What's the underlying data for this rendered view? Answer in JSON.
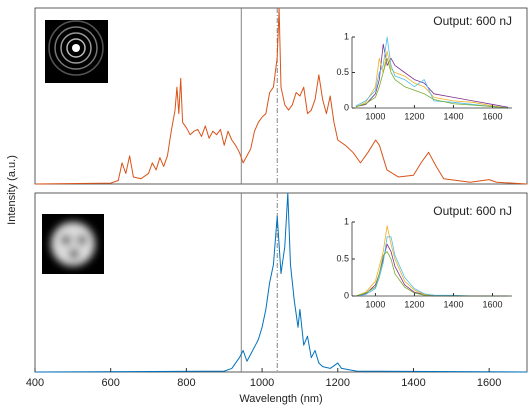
{
  "chart_data": [
    {
      "type": "line",
      "ylabel": "Intensity (a.u.)",
      "annotation": "Output: 600 nJ",
      "xlim": [
        400,
        1700
      ],
      "ylim": [
        0,
        1
      ],
      "vlines": [
        {
          "value": 945,
          "style": "solid"
        },
        {
          "value": 1040,
          "style": "dashdot"
        }
      ],
      "x": [
        400,
        600,
        620,
        630,
        640,
        650,
        660,
        680,
        700,
        710,
        720,
        730,
        740,
        750,
        760,
        770,
        775,
        780,
        785,
        790,
        800,
        810,
        820,
        830,
        840,
        850,
        860,
        870,
        880,
        890,
        900,
        910,
        920,
        930,
        940,
        950,
        960,
        970,
        980,
        990,
        1000,
        1010,
        1020,
        1030,
        1040,
        1045,
        1050,
        1060,
        1070,
        1080,
        1090,
        1100,
        1110,
        1120,
        1130,
        1140,
        1150,
        1160,
        1170,
        1180,
        1190,
        1200,
        1220,
        1240,
        1260,
        1280,
        1300,
        1310,
        1330,
        1360,
        1400,
        1420,
        1440,
        1460,
        1480,
        1550,
        1600,
        1620,
        1700
      ],
      "series": [
        {
          "color": "#d95319",
          "values": [
            0,
            0.005,
            0.02,
            0.12,
            0.06,
            0.16,
            0.04,
            0.03,
            0.06,
            0.12,
            0.08,
            0.15,
            0.1,
            0.16,
            0.3,
            0.42,
            0.55,
            0.4,
            0.6,
            0.35,
            0.32,
            0.28,
            0.3,
            0.31,
            0.27,
            0.33,
            0.26,
            0.3,
            0.28,
            0.31,
            0.22,
            0.3,
            0.25,
            0.22,
            0.18,
            0.12,
            0.16,
            0.2,
            0.3,
            0.35,
            0.38,
            0.4,
            0.52,
            0.55,
            0.72,
            1,
            0.55,
            0.45,
            0.42,
            0.45,
            0.52,
            0.5,
            0.55,
            0.4,
            0.42,
            0.48,
            0.62,
            0.48,
            0.4,
            0.5,
            0.35,
            0.25,
            0.22,
            0.18,
            0.12,
            0.18,
            0.25,
            0.22,
            0.08,
            0.04,
            0.05,
            0.12,
            0.18,
            0.1,
            0.03,
            0.01,
            0.025,
            0.01,
            0
          ]
        }
      ],
      "inset": {
        "type": "line",
        "xlim": [
          880,
          1700
        ],
        "ylim": [
          0,
          1
        ],
        "xticks": [
          1000,
          1200,
          1400,
          1600
        ],
        "yticks": [
          0,
          0.5,
          1
        ],
        "x": [
          900,
          950,
          1000,
          1020,
          1040,
          1060,
          1080,
          1100,
          1150,
          1200,
          1250,
          1300,
          1400,
          1500,
          1600,
          1680
        ],
        "series": [
          {
            "color": "#7e2f8e",
            "values": [
              0.02,
              0.05,
              0.2,
              0.4,
              0.9,
              0.6,
              0.7,
              0.6,
              0.5,
              0.4,
              0.35,
              0.2,
              0.15,
              0.1,
              0.05,
              0.01
            ]
          },
          {
            "color": "#edb120",
            "values": [
              0.01,
              0.08,
              0.3,
              0.7,
              0.5,
              0.8,
              0.55,
              0.5,
              0.45,
              0.35,
              0.3,
              0.15,
              0.1,
              0.08,
              0.03,
              0
            ]
          },
          {
            "color": "#4dbeee",
            "values": [
              0.03,
              0.1,
              0.25,
              0.5,
              0.6,
              1,
              0.6,
              0.45,
              0.4,
              0.3,
              0.4,
              0.1,
              0.08,
              0.05,
              0.02,
              0
            ]
          },
          {
            "color": "#77ac30",
            "values": [
              0.02,
              0.06,
              0.15,
              0.3,
              0.5,
              0.7,
              0.5,
              0.4,
              0.3,
              0.25,
              0.2,
              0.12,
              0.06,
              0.04,
              0.02,
              0
            ]
          }
        ]
      }
    },
    {
      "type": "line",
      "xlabel": "Wavelength (nm)",
      "annotation": "Output: 600 nJ",
      "xlim": [
        400,
        1700
      ],
      "ylim": [
        0,
        1
      ],
      "xticks": [
        400,
        600,
        800,
        1000,
        1200,
        1400,
        1600
      ],
      "vlines": [
        {
          "value": 945,
          "style": "solid"
        },
        {
          "value": 1040,
          "style": "dashdot"
        }
      ],
      "x": [
        400,
        900,
        920,
        940,
        950,
        960,
        970,
        980,
        990,
        1000,
        1010,
        1020,
        1030,
        1040,
        1050,
        1060,
        1068,
        1075,
        1085,
        1095,
        1100,
        1110,
        1120,
        1130,
        1140,
        1150,
        1160,
        1180,
        1200,
        1210,
        1250,
        1700
      ],
      "series": [
        {
          "color": "#0072bd",
          "values": [
            0,
            0.005,
            0.02,
            0.08,
            0.12,
            0.06,
            0.1,
            0.14,
            0.18,
            0.25,
            0.35,
            0.5,
            0.6,
            0.87,
            0.55,
            0.7,
            1,
            0.6,
            0.4,
            0.25,
            0.35,
            0.15,
            0.2,
            0.08,
            0.12,
            0.05,
            0.03,
            0.02,
            0.05,
            0.02,
            0.005,
            0
          ]
        }
      ],
      "inset": {
        "type": "line",
        "xlim": [
          880,
          1700
        ],
        "ylim": [
          0,
          1
        ],
        "xticks": [
          1000,
          1200,
          1400,
          1600
        ],
        "yticks": [
          0,
          0.5,
          1
        ],
        "x": [
          900,
          950,
          1000,
          1020,
          1040,
          1060,
          1080,
          1100,
          1150,
          1200,
          1250,
          1300,
          1400,
          1500,
          1600,
          1680
        ],
        "series": [
          {
            "color": "#7e2f8e",
            "values": [
              0,
              0.03,
              0.15,
              0.3,
              0.5,
              0.7,
              0.6,
              0.4,
              0.15,
              0.05,
              0.02,
              0.01,
              0,
              0,
              0,
              0
            ]
          },
          {
            "color": "#edb120",
            "values": [
              0,
              0.05,
              0.2,
              0.4,
              0.6,
              0.95,
              0.7,
              0.5,
              0.2,
              0.08,
              0.02,
              0.01,
              0,
              0,
              0,
              0
            ]
          },
          {
            "color": "#4dbeee",
            "values": [
              0,
              0.02,
              0.1,
              0.25,
              0.45,
              0.8,
              0.8,
              0.55,
              0.25,
              0.1,
              0.03,
              0.01,
              0.01,
              0,
              0,
              0
            ]
          },
          {
            "color": "#77ac30",
            "values": [
              0,
              0.04,
              0.12,
              0.3,
              0.55,
              0.6,
              0.5,
              0.3,
              0.12,
              0.04,
              0.01,
              0,
              0,
              0,
              0,
              0
            ]
          }
        ]
      }
    }
  ]
}
